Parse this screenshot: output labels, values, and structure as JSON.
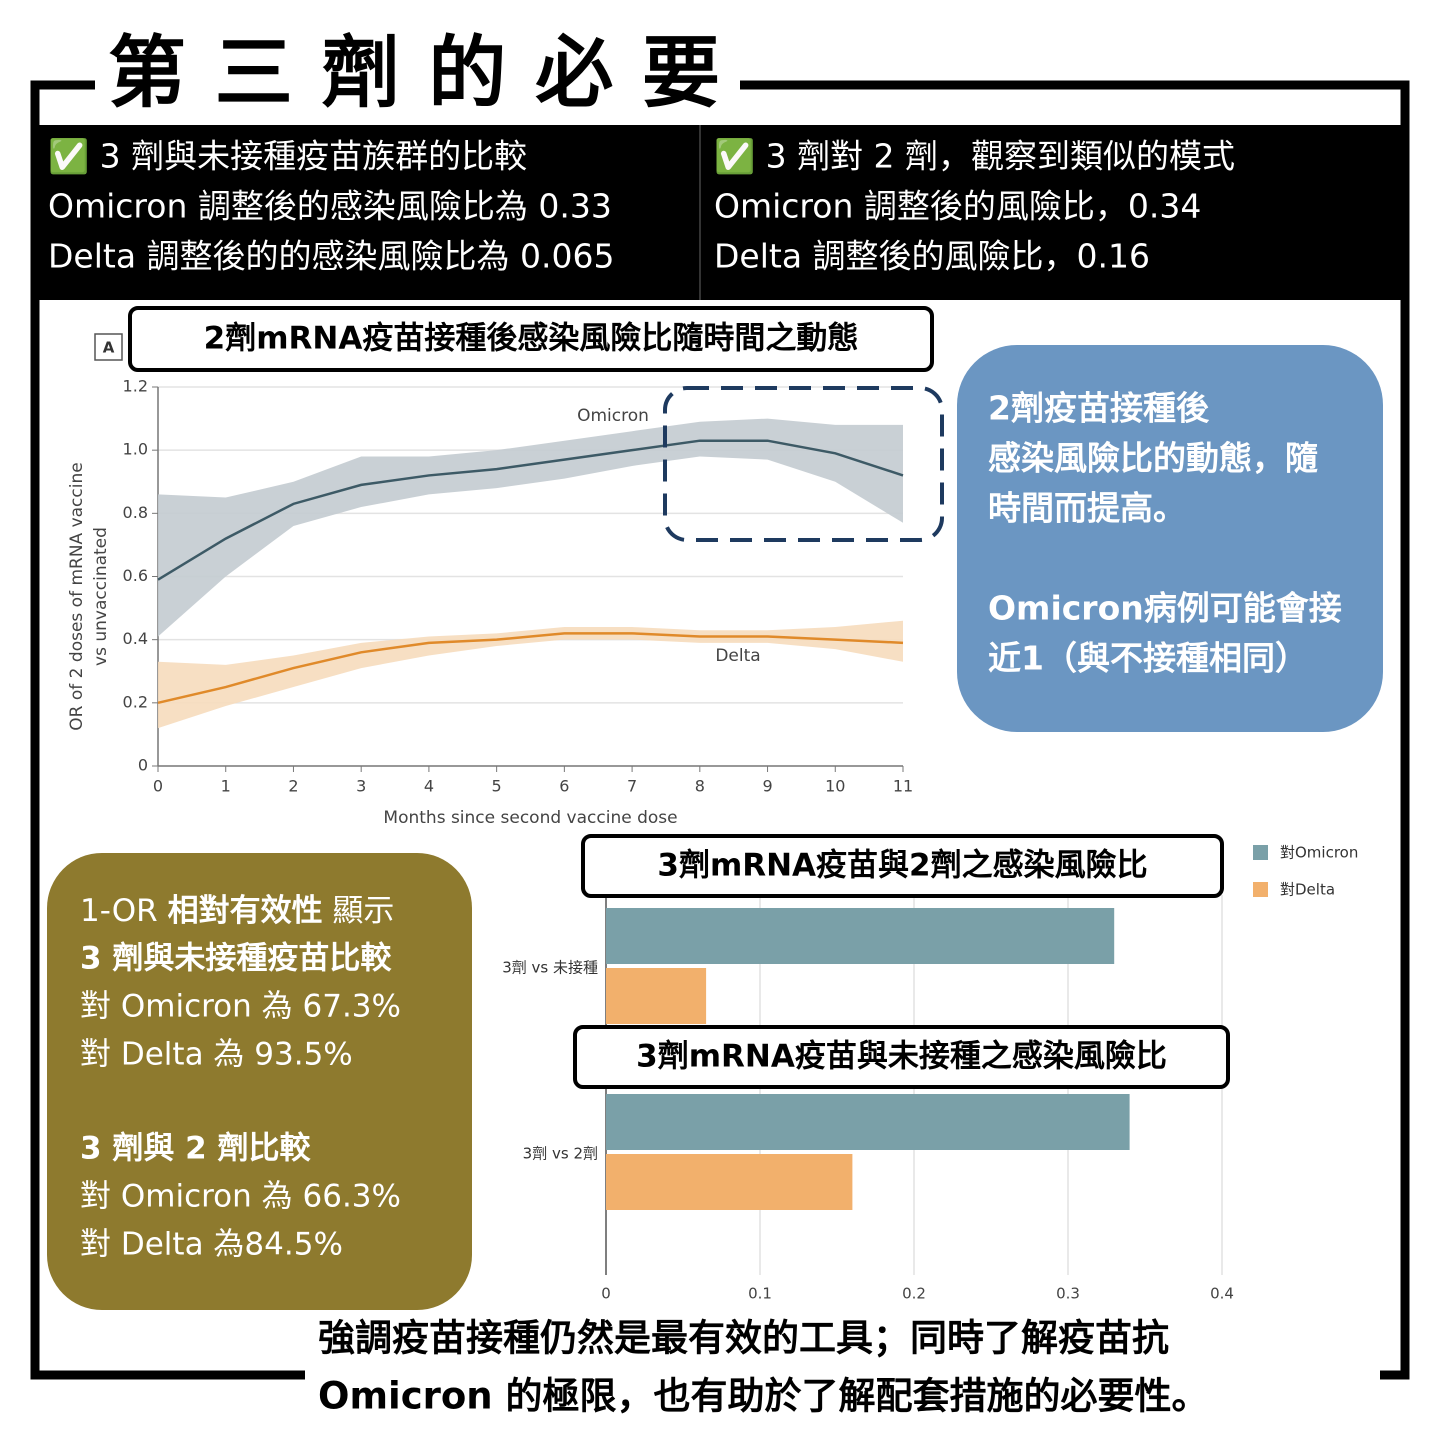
{
  "title": "第 三 劑 的 必 要",
  "summary": [
    [
      "✅ 3 劑與未接種疫苗族群的比較",
      "Omicron 調整後的感染風險比為 0.33",
      "Delta 調整後的的感染風險比為 0.065"
    ],
    [
      "✅ 3 劑對 2 劑，觀察到類似的模式",
      "Omicron 調整後的風險比，0.34",
      "Delta 調整後的風險比，0.16"
    ]
  ],
  "chart_data": [
    {
      "type": "line",
      "panel": "A",
      "title": "2劑mRNA疫苗接種後感染風險比隨時間之動態",
      "ylabel": [
        "OR of 2 doses of mRNA vaccine",
        "vs unvaccinated"
      ],
      "xlabel": "Months since second vaccine dose",
      "x": [
        0,
        1,
        2,
        3,
        4,
        5,
        6,
        7,
        8,
        9,
        10,
        11
      ],
      "xlim": [
        0,
        11
      ],
      "xticks": [
        0,
        1,
        2,
        3,
        4,
        5,
        6,
        7,
        8,
        9,
        10,
        11
      ],
      "ylim": [
        0,
        1.2
      ],
      "yticks": [
        0,
        0.2,
        0.4,
        0.6,
        0.8,
        {
          "value": 1,
          "label": "1.0"
        },
        1.2
      ],
      "grid": true,
      "series": [
        {
          "name": "Omicron",
          "color": "#3d5a66",
          "band_color": "#c3cbd0",
          "values": [
            0.59,
            0.72,
            0.83,
            0.89,
            0.92,
            0.94,
            0.97,
            1.0,
            1.03,
            1.03,
            0.99,
            0.92
          ],
          "lower": [
            0.41,
            0.6,
            0.76,
            0.82,
            0.86,
            0.88,
            0.91,
            0.95,
            0.98,
            0.97,
            0.9,
            0.77
          ],
          "upper": [
            0.86,
            0.85,
            0.9,
            0.98,
            0.98,
            1.0,
            1.03,
            1.06,
            1.09,
            1.1,
            1.08,
            1.08
          ]
        },
        {
          "name": "Delta",
          "color": "#e08a2a",
          "band_color": "#f6dcbc",
          "values": [
            0.2,
            0.25,
            0.31,
            0.36,
            0.39,
            0.4,
            0.42,
            0.42,
            0.41,
            0.41,
            0.4,
            0.39
          ],
          "lower": [
            0.12,
            0.19,
            0.25,
            0.31,
            0.35,
            0.38,
            0.4,
            0.4,
            0.39,
            0.39,
            0.37,
            0.33
          ],
          "upper": [
            0.33,
            0.32,
            0.35,
            0.39,
            0.41,
            0.42,
            0.44,
            0.44,
            0.43,
            0.43,
            0.44,
            0.46
          ]
        }
      ]
    },
    {
      "type": "bar",
      "orientation": "horizontal",
      "annotations": [
        "3劑mRNA疫苗與2劑之感染風險比",
        "3劑mRNA疫苗與未接種之感染風險比"
      ],
      "categories": [
        "3劑 vs 未接種",
        "3劑 vs 2劑"
      ],
      "xlim": [
        0,
        0.4
      ],
      "xticks": [
        0,
        0.1,
        0.2,
        0.3,
        0.4
      ],
      "grid": true,
      "legend": "top-right",
      "series": [
        {
          "name": "對Omicron",
          "color": "#7aa0a8",
          "values": [
            0.33,
            0.34
          ]
        },
        {
          "name": "對Delta",
          "color": "#f2b06c",
          "values": [
            0.065,
            0.16
          ]
        }
      ]
    }
  ],
  "callout": [
    "2劑疫苗接種後",
    "感染風險比的動態，隨",
    "時間而提高。",
    "Omicron病例可能會接",
    "近1（與不接種相同）"
  ],
  "effectiveness": [
    [
      "1-OR ",
      "相對有效性",
      " 顯示"
    ],
    "3 劑與未接種疫苗比較",
    "對 Omicron 為 67.3%",
    "對 Delta 為 93.5%",
    "3 劑與 2 劑比較",
    "對 Omicron 為 66.3%",
    "對 Delta 為84.5%"
  ],
  "footer": [
    "強調疫苗接種仍然是最有效的工具；同時了解疫苗抗",
    "Omicron 的極限，也有助於了解配套措施的必要性。"
  ]
}
